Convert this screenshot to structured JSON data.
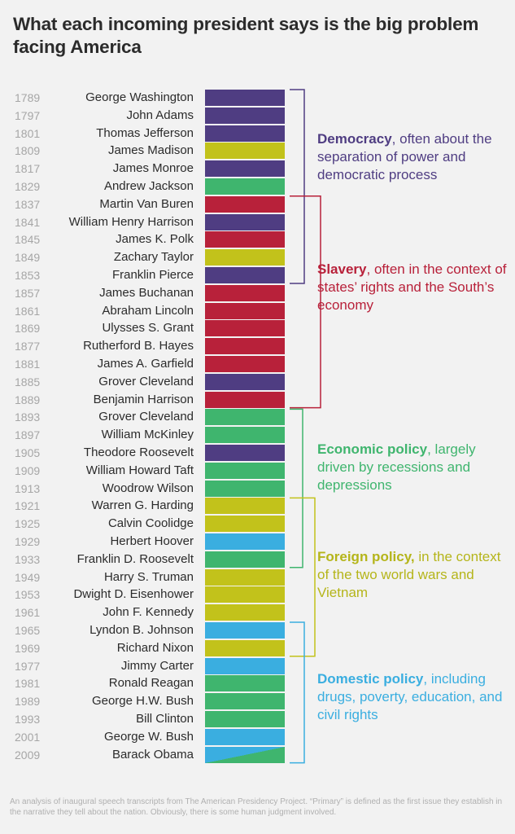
{
  "title": "What each incoming president says is the big problem facing America",
  "colors": {
    "democracy": "#4f3d82",
    "slavery": "#b8213a",
    "economic": "#3fb56e",
    "foreign": "#c2c21b",
    "domestic": "#3aaee0"
  },
  "categories": [
    {
      "key": "democracy",
      "bold": "Democracy",
      "rest": ", often about the separation of power and democratic process"
    },
    {
      "key": "slavery",
      "bold": "Slavery",
      "rest": ", often in the context of states’ rights and the South’s economy"
    },
    {
      "key": "economic",
      "bold": "Economic policy",
      "rest": ", largely driven by recessions and depressions"
    },
    {
      "key": "foreign",
      "bold": "Foreign policy,",
      "rest": " in the context of the two world wars and Vietnam"
    },
    {
      "key": "domestic",
      "bold": "Domestic policy",
      "rest": ", including drugs, poverty, education, and civil rights"
    }
  ],
  "chart_data": {
    "type": "table",
    "title": "What each incoming president says is the big problem facing America",
    "rows": [
      {
        "year": "1789",
        "president": "George Washington",
        "category": "democracy"
      },
      {
        "year": "1797",
        "president": "John Adams",
        "category": "democracy"
      },
      {
        "year": "1801",
        "president": "Thomas Jefferson",
        "category": "democracy"
      },
      {
        "year": "1809",
        "president": "James Madison",
        "category": "foreign"
      },
      {
        "year": "1817",
        "president": "James Monroe",
        "category": "democracy"
      },
      {
        "year": "1829",
        "president": "Andrew Jackson",
        "category": "economic"
      },
      {
        "year": "1837",
        "president": "Martin Van Buren",
        "category": "slavery"
      },
      {
        "year": "1841",
        "president": "William Henry Harrison",
        "category": "democracy"
      },
      {
        "year": "1845",
        "president": "James K. Polk",
        "category": "slavery"
      },
      {
        "year": "1849",
        "president": "Zachary Taylor",
        "category": "foreign"
      },
      {
        "year": "1853",
        "president": "Franklin Pierce",
        "category": "democracy"
      },
      {
        "year": "1857",
        "president": "James Buchanan",
        "category": "slavery"
      },
      {
        "year": "1861",
        "president": "Abraham Lincoln",
        "category": "slavery"
      },
      {
        "year": "1869",
        "president": "Ulysses S. Grant",
        "category": "slavery"
      },
      {
        "year": "1877",
        "president": "Rutherford B. Hayes",
        "category": "slavery"
      },
      {
        "year": "1881",
        "president": "James A. Garfield",
        "category": "slavery"
      },
      {
        "year": "1885",
        "president": "Grover Cleveland",
        "category": "democracy"
      },
      {
        "year": "1889",
        "president": "Benjamin Harrison",
        "category": "slavery"
      },
      {
        "year": "1893",
        "president": "Grover Cleveland",
        "category": "economic"
      },
      {
        "year": "1897",
        "president": "William McKinley",
        "category": "economic"
      },
      {
        "year": "1905",
        "president": "Theodore Roosevelt",
        "category": "democracy"
      },
      {
        "year": "1909",
        "president": "William Howard Taft",
        "category": "economic"
      },
      {
        "year": "1913",
        "president": "Woodrow Wilson",
        "category": "economic"
      },
      {
        "year": "1921",
        "president": "Warren G. Harding",
        "category": "foreign"
      },
      {
        "year": "1925",
        "president": "Calvin Coolidge",
        "category": "foreign"
      },
      {
        "year": "1929",
        "president": "Herbert Hoover",
        "category": "domestic"
      },
      {
        "year": "1933",
        "president": "Franklin D. Roosevelt",
        "category": "economic"
      },
      {
        "year": "1949",
        "president": "Harry S. Truman",
        "category": "foreign"
      },
      {
        "year": "1953",
        "president": "Dwight D. Eisenhower",
        "category": "foreign"
      },
      {
        "year": "1961",
        "president": "John F. Kennedy",
        "category": "foreign"
      },
      {
        "year": "1965",
        "president": "Lyndon B. Johnson",
        "category": "domestic"
      },
      {
        "year": "1969",
        "president": "Richard Nixon",
        "category": "foreign"
      },
      {
        "year": "1977",
        "president": "Jimmy Carter",
        "category": "domestic"
      },
      {
        "year": "1981",
        "president": "Ronald Reagan",
        "category": "economic"
      },
      {
        "year": "1989",
        "president": "George H.W. Bush",
        "category": "economic"
      },
      {
        "year": "1993",
        "president": "Bill Clinton",
        "category": "economic"
      },
      {
        "year": "2001",
        "president": "George W. Bush",
        "category": "domestic"
      },
      {
        "year": "2009",
        "president": "Barack Obama",
        "category": "domestic",
        "secondary_category": "economic"
      }
    ]
  },
  "footnote": "An analysis of inaugural speech transcripts from The American Presidency Project. “Primary” is defined as the first issue they establish in the narrative they tell about the nation. Obviously, there is some human judgment involved."
}
